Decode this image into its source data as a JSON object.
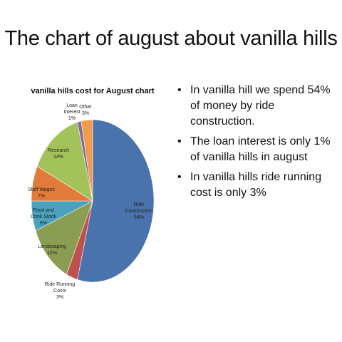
{
  "slide": {
    "title": "The chart of august about vanilla hills"
  },
  "bullets": [
    "In vanilla hill we spend 54% of money by ride construction.",
    "The loan interest is only 1% of vanilla hills in august",
    "In vanilla hills ride running cost is only 3%"
  ],
  "chart_data": {
    "type": "pie",
    "title": "vanilla hills cost for August chart",
    "start": "top, clockwise",
    "slices": [
      {
        "label": [
          "Ride",
          "Construction"
        ],
        "value_label": "54%",
        "value": 54,
        "color": "#4a73ad"
      },
      {
        "label": [
          "Ride Running",
          "Costs"
        ],
        "value_label": "3%",
        "value": 3,
        "color": "#c0504d"
      },
      {
        "label": [
          "Landscaping"
        ],
        "value_label": "12%",
        "value": 12,
        "color": "#8a9d52"
      },
      {
        "label": [
          "Food and",
          "Drink Stock"
        ],
        "value_label": "6%",
        "value": 6,
        "color": "#4aa2bd"
      },
      {
        "label": [
          "Staff Wages"
        ],
        "value_label": "7%",
        "value": 7,
        "color": "#e07b39"
      },
      {
        "label": [
          "Research"
        ],
        "value_label": "14%",
        "value": 14,
        "color": "#a3c35a"
      },
      {
        "label": [
          "Loan",
          "Interest"
        ],
        "value_label": "1%",
        "value": 1,
        "color": "#7e68a6"
      },
      {
        "label": [
          "Other"
        ],
        "value_label": "3%",
        "value": 3,
        "color": "#f39b4d"
      }
    ]
  }
}
